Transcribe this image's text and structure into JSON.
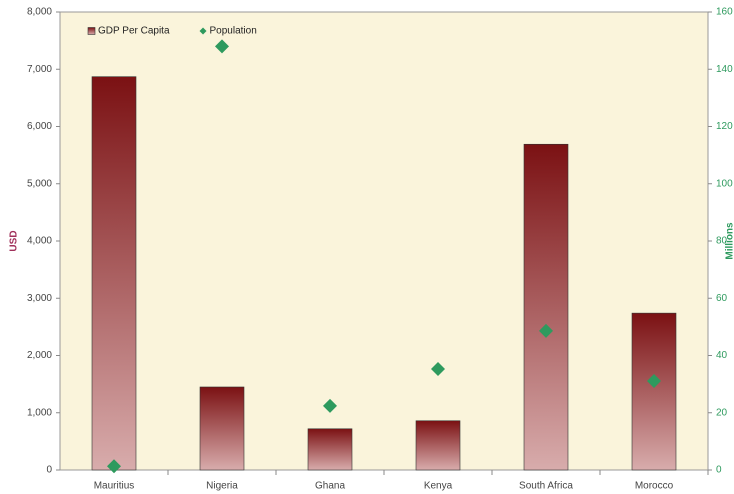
{
  "chart_data": {
    "type": "bar",
    "categories": [
      "Mauritius",
      "Nigeria",
      "Ghana",
      "Kenya",
      "South Africa",
      "Morocco"
    ],
    "series": [
      {
        "name": "GDP Per Capita",
        "type": "bar",
        "color": "#7b1113",
        "values": [
          6870,
          1450,
          720,
          860,
          5690,
          2740
        ]
      },
      {
        "name": "Population",
        "type": "scatter",
        "axis": "y2",
        "color": "#2e9a5e",
        "values": [
          1.3,
          148,
          22.4,
          35.3,
          48.6,
          31.1
        ]
      }
    ],
    "ylabel": "USD",
    "y2label": "Millions",
    "ylim": [
      0,
      8000
    ],
    "yticks": [
      0,
      {
        "value": 1000,
        "label": "1,000"
      },
      {
        "value": 2000,
        "label": "2,000"
      },
      {
        "value": 3000,
        "label": "3,000"
      },
      {
        "value": 4000,
        "label": "4,000"
      },
      {
        "value": 5000,
        "label": "5,000"
      },
      {
        "value": 6000,
        "label": "6,000"
      },
      {
        "value": 7000,
        "label": "7,000"
      },
      {
        "value": 8000,
        "label": "8,000"
      }
    ],
    "y2lim": [
      0,
      160
    ],
    "y2ticks": [
      0,
      20,
      40,
      60,
      80,
      100,
      120,
      140,
      160
    ],
    "legend": "upper left",
    "grid": false
  }
}
